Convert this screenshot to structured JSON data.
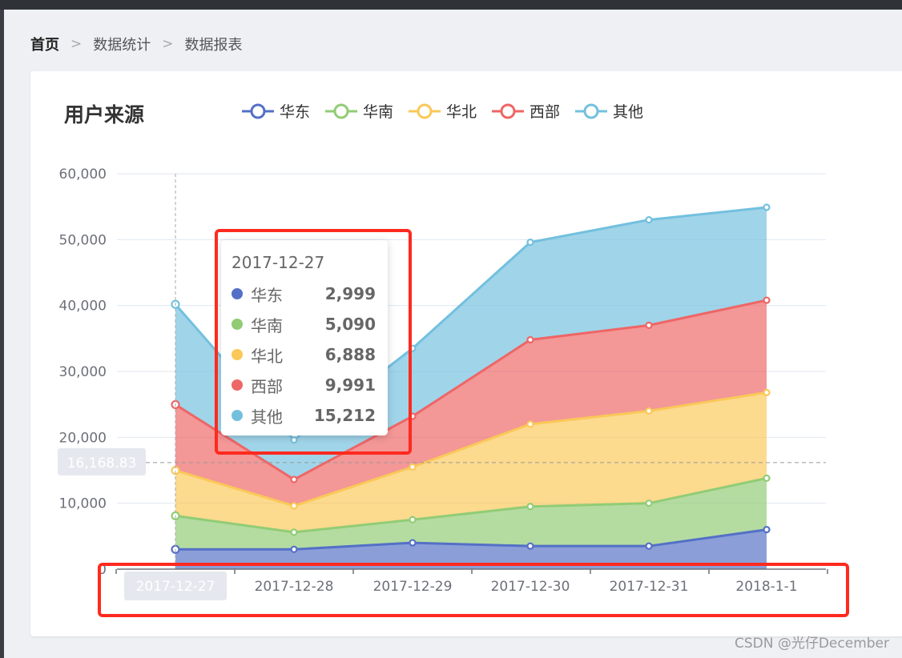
{
  "breadcrumb": [
    "首页",
    "数据统计",
    "数据报表"
  ],
  "card_title": "用户来源",
  "watermark": "CSDN @光仔December",
  "colors": {
    "east": "#5470c6",
    "south": "#91cc75",
    "north": "#fac858",
    "west": "#ee6666",
    "other": "#73c0de",
    "annotation_box": "#ff2a1e"
  },
  "chart_data": {
    "type": "area",
    "stacked": true,
    "categories": [
      "2017-12-27",
      "2017-12-28",
      "2017-12-29",
      "2017-12-30",
      "2017-12-31",
      "2018-1-1"
    ],
    "y_ticks": [
      "60,000",
      "50,000",
      "40,000",
      "30,000",
      "20,000",
      "10,000",
      "0"
    ],
    "ylim": [
      0,
      60000
    ],
    "legend_position": "top",
    "series": [
      {
        "name": "华东",
        "values": [
          2999,
          3000,
          4000,
          3500,
          3500,
          6000
        ]
      },
      {
        "name": "华南",
        "values": [
          5090,
          2600,
          3500,
          6000,
          6500,
          7800
        ]
      },
      {
        "name": "华北",
        "values": [
          6888,
          4000,
          8000,
          12500,
          14000,
          13000
        ]
      },
      {
        "name": "西部",
        "values": [
          9991,
          4000,
          7700,
          12800,
          13000,
          14000
        ]
      },
      {
        "name": "其他",
        "values": [
          15212,
          6000,
          10300,
          14800,
          16000,
          14100
        ]
      }
    ],
    "axis_pointer": {
      "category": "2017-12-27",
      "y_value": 16168.83,
      "y_label": "16,168.83"
    },
    "tooltip": {
      "title": "2017-12-27",
      "rows": [
        {
          "name": "华东",
          "value": "2,999"
        },
        {
          "name": "华南",
          "value": "5,090"
        },
        {
          "name": "华北",
          "value": "6,888"
        },
        {
          "name": "西部",
          "value": "9,991"
        },
        {
          "name": "其他",
          "value": "15,212"
        }
      ]
    }
  }
}
